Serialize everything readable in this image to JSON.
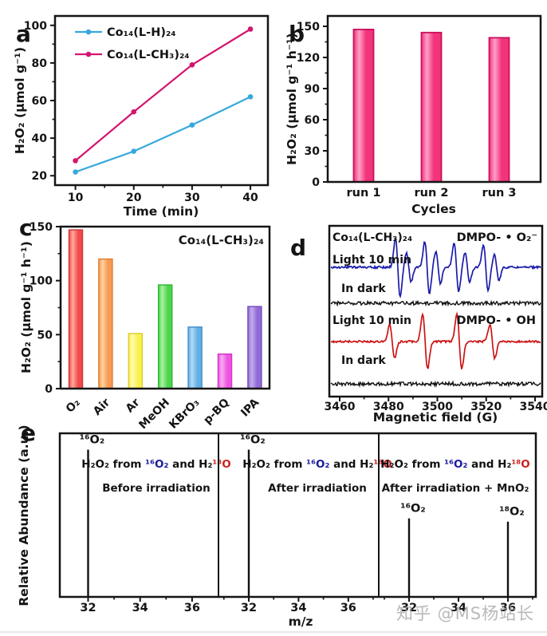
{
  "watermark": "知乎 @MS杨站长",
  "panels": {
    "a": {
      "letter": "a"
    },
    "b": {
      "letter": "b"
    },
    "c": {
      "letter": "c"
    },
    "d": {
      "letter": "d"
    },
    "e": {
      "letter": "e"
    }
  },
  "chart_data": [
    {
      "id": "a",
      "type": "line",
      "xlabel": "Time (min)",
      "ylabel": "H₂O₂ (μmol g⁻¹)",
      "x": [
        10,
        20,
        30,
        40
      ],
      "series": [
        {
          "name": "Co₁₄(L-H)₂₄",
          "color": "#35a9dc",
          "values": [
            22,
            33,
            47,
            62
          ]
        },
        {
          "name": "Co₁₄(L-CH₃)₂₄",
          "color": "#d3156f",
          "values": [
            28,
            54,
            79,
            98
          ]
        }
      ],
      "xticks": [
        10,
        20,
        30,
        40
      ],
      "xminor": [
        15,
        25,
        35
      ],
      "yticks": [
        20,
        40,
        60,
        80,
        100
      ],
      "yminor": [
        30,
        50,
        70,
        90
      ],
      "xlim": [
        6.5,
        43
      ],
      "ylim": [
        15,
        105
      ],
      "legend_position": "top-left",
      "grid": false
    },
    {
      "id": "b",
      "type": "bar",
      "xlabel": "Cycles",
      "ylabel": "H₂O₂ (μmol g⁻¹ h⁻¹)",
      "categories": [
        "run 1",
        "run 2",
        "run 3"
      ],
      "values": [
        147,
        144,
        139
      ],
      "yticks": [
        0,
        30,
        60,
        90,
        120,
        150
      ],
      "yminor": [
        15,
        45,
        75,
        105,
        135
      ],
      "ylim": [
        0,
        160
      ],
      "bar_base": "#f2347c",
      "bar_light": "#ff9fc8",
      "bar_edge": "#c9105a",
      "grid": false
    },
    {
      "id": "c",
      "type": "bar",
      "ylabel": "H₂O₂ (μmol g⁻¹ h⁻¹)",
      "annotation": "Co₁₄(L-CH₃)₂₄",
      "categories": [
        "O₂",
        "Air",
        "Ar",
        "MeOH",
        "KBrO₃",
        "p-BQ",
        "IPA"
      ],
      "values": [
        147,
        120,
        51,
        96,
        57,
        32,
        76
      ],
      "bar_base": [
        "#ef4b4b",
        "#f79a52",
        "#faf04e",
        "#4ed44e",
        "#62aee6",
        "#ee55e2",
        "#8f6ad6"
      ],
      "bar_light": [
        "#ffa99e",
        "#ffd2a0",
        "#fffbb2",
        "#aaf0a2",
        "#b4daf5",
        "#f9aaf0",
        "#c5aceb"
      ],
      "bar_edge": [
        "#d03a3a",
        "#e07f35",
        "#ddcf34",
        "#2fb92f",
        "#4890cc",
        "#d438c8",
        "#7850c0"
      ],
      "yticks": [
        0,
        50,
        100,
        150
      ],
      "yminor": [
        25,
        75,
        125
      ],
      "ylim": [
        0,
        150
      ],
      "rotated_category_labels": true,
      "grid": false
    },
    {
      "id": "d",
      "type": "line",
      "subtype": "EPR spectra",
      "xlabel": "Magnetic field (G)",
      "xticks": [
        3460,
        3480,
        3500,
        3520,
        3540
      ],
      "xminor": [
        3470,
        3490,
        3510,
        3530
      ],
      "xlim": [
        3456,
        3545
      ],
      "annotations": {
        "sample": "Co₁₄(L-CH₃)₂₄",
        "adduct_top": "DMPO- • O₂⁻",
        "light_top": "Light 10 min",
        "dark_top": "In dark",
        "adduct_bottom": "DMPO- • OH",
        "light_bottom": "Light 10 min",
        "dark_bottom": "In dark"
      },
      "colors": {
        "light_top": "#1c1caa",
        "dark": "#111111",
        "light_bottom": "#cc1414"
      },
      "series": [
        {
          "name": "DMPO-•O₂⁻ Light 10 min",
          "color": "#1c1caa",
          "peak_centers_G": [
            3483.8,
            3488.3,
            3495.8,
            3500.3,
            3507.8,
            3512.3,
            3519.8,
            3524.3
          ],
          "peak_amplitudes": [
            1.0,
            0.5,
            0.9,
            0.55,
            0.85,
            0.5,
            0.8,
            0.45
          ]
        },
        {
          "name": "DMPO-•O₂⁻ In dark",
          "color": "#111111",
          "peak_centers_G": [],
          "peak_amplitudes": []
        },
        {
          "name": "DMPO-•OH Light 10 min",
          "color": "#cc1414",
          "peak_centers_G": [
            3481.5,
            3495.0,
            3509.0,
            3522.5
          ],
          "peak_amplitudes": [
            0.62,
            1.0,
            1.0,
            0.62
          ]
        },
        {
          "name": "DMPO-•OH In dark",
          "color": "#111111",
          "peak_centers_G": [],
          "peak_amplitudes": []
        }
      ]
    },
    {
      "id": "e",
      "type": "stem",
      "subtype": "mass spectra",
      "xlabel": "m/z",
      "ylabel": "Relative Abundance (a.u.)",
      "subpanels": [
        {
          "caption_parts": [
            {
              "text": "H₂O₂ from ",
              "color": "#111111"
            },
            {
              "text": "¹⁶O₂",
              "color": "#1a1a9e"
            },
            {
              "text": " and H₂",
              "color": "#111111"
            },
            {
              "text": "¹⁸O",
              "color": "#cc2222"
            }
          ],
          "condition": "Before irradiation",
          "xticks": [
            32,
            34,
            36
          ],
          "xminor": [
            31,
            33,
            35,
            37
          ],
          "peaks": [
            {
              "mz": 32,
              "rel_height": 0.9,
              "label": "¹⁶O₂",
              "label_color": "#1a1a9e"
            }
          ]
        },
        {
          "caption_parts": [
            {
              "text": "H₂O₂ from ",
              "color": "#111111"
            },
            {
              "text": "¹⁶O₂",
              "color": "#1a1a9e"
            },
            {
              "text": " and H₂",
              "color": "#111111"
            },
            {
              "text": "¹⁸O",
              "color": "#cc2222"
            }
          ],
          "condition": "After irradiation",
          "xticks": [
            32,
            34,
            36
          ],
          "xminor": [
            31,
            33,
            35,
            37
          ],
          "peaks": [
            {
              "mz": 32,
              "rel_height": 0.9,
              "label": "¹⁶O₂",
              "label_color": "#1a1a9e"
            }
          ]
        },
        {
          "caption_parts": [
            {
              "text": "H₂O₂ from ",
              "color": "#111111"
            },
            {
              "text": "¹⁶O₂",
              "color": "#1a1a9e"
            },
            {
              "text": " and H₂",
              "color": "#111111"
            },
            {
              "text": "¹⁸O",
              "color": "#cc2222"
            }
          ],
          "condition": "After irradiation + MnO₂",
          "xticks": [
            32,
            34,
            36
          ],
          "xminor": [
            31,
            33,
            35,
            37
          ],
          "peaks": [
            {
              "mz": 32,
              "rel_height": 0.48,
              "label": "¹⁶O₂",
              "label_color": "#1a1a9e"
            },
            {
              "mz": 36,
              "rel_height": 0.46,
              "label": "¹⁸O₂",
              "label_color": "#cc2222"
            }
          ]
        }
      ]
    }
  ]
}
